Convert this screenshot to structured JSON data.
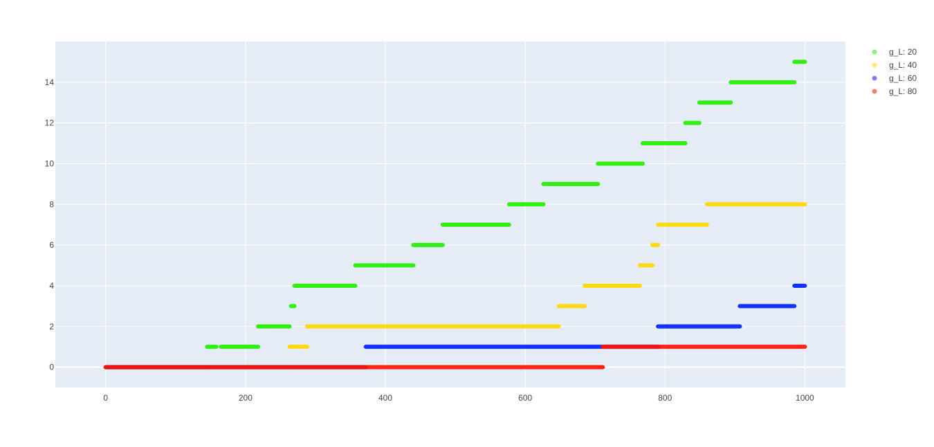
{
  "chart_data": {
    "type": "scatter",
    "title": "",
    "xlabel": "",
    "ylabel": "",
    "xlim": [
      -72,
      1058
    ],
    "ylim": [
      -1,
      16
    ],
    "x_ticks": [
      0,
      200,
      400,
      600,
      800,
      1000
    ],
    "y_ticks": [
      0,
      2,
      4,
      6,
      8,
      10,
      12,
      14
    ],
    "grid": true,
    "legend_position": "top-right",
    "plot_background": "#e5ecf6",
    "grid_color": "#ffffff",
    "series": [
      {
        "name": "g_L: 20",
        "color": "#22ee00",
        "segments": [
          {
            "x0": 0,
            "x1": 145,
            "y": 0
          },
          {
            "x0": 145,
            "x1": 158,
            "y": 1
          },
          {
            "x0": 165,
            "x1": 218,
            "y": 1
          },
          {
            "x0": 218,
            "x1": 263,
            "y": 2
          },
          {
            "x0": 265,
            "x1": 270,
            "y": 3
          },
          {
            "x0": 270,
            "x1": 357,
            "y": 4
          },
          {
            "x0": 357,
            "x1": 440,
            "y": 5
          },
          {
            "x0": 440,
            "x1": 482,
            "y": 6
          },
          {
            "x0": 482,
            "x1": 577,
            "y": 7
          },
          {
            "x0": 577,
            "x1": 626,
            "y": 8
          },
          {
            "x0": 626,
            "x1": 704,
            "y": 9
          },
          {
            "x0": 704,
            "x1": 768,
            "y": 10
          },
          {
            "x0": 768,
            "x1": 829,
            "y": 11
          },
          {
            "x0": 829,
            "x1": 849,
            "y": 12
          },
          {
            "x0": 849,
            "x1": 894,
            "y": 13
          },
          {
            "x0": 894,
            "x1": 985,
            "y": 14
          },
          {
            "x0": 985,
            "x1": 1000,
            "y": 15
          }
        ]
      },
      {
        "name": "g_L: 40",
        "color": "#ffd700",
        "segments": [
          {
            "x0": 0,
            "x1": 263,
            "y": 0
          },
          {
            "x0": 263,
            "x1": 288,
            "y": 1
          },
          {
            "x0": 288,
            "x1": 648,
            "y": 2
          },
          {
            "x0": 648,
            "x1": 685,
            "y": 3
          },
          {
            "x0": 685,
            "x1": 764,
            "y": 4
          },
          {
            "x0": 764,
            "x1": 782,
            "y": 5
          },
          {
            "x0": 782,
            "x1": 790,
            "y": 6
          },
          {
            "x0": 790,
            "x1": 860,
            "y": 7
          },
          {
            "x0": 860,
            "x1": 1000,
            "y": 8
          }
        ]
      },
      {
        "name": "g_L: 60",
        "color": "#0022ff",
        "segments": [
          {
            "x0": 0,
            "x1": 372,
            "y": 0
          },
          {
            "x0": 372,
            "x1": 790,
            "y": 1
          },
          {
            "x0": 790,
            "x1": 907,
            "y": 2
          },
          {
            "x0": 907,
            "x1": 985,
            "y": 3
          },
          {
            "x0": 985,
            "x1": 1000,
            "y": 4
          }
        ]
      },
      {
        "name": "g_L: 80",
        "color": "#ff1100",
        "segments": [
          {
            "x0": 0,
            "x1": 711,
            "y": 0
          },
          {
            "x0": 711,
            "x1": 1000,
            "y": 1
          }
        ]
      }
    ]
  }
}
